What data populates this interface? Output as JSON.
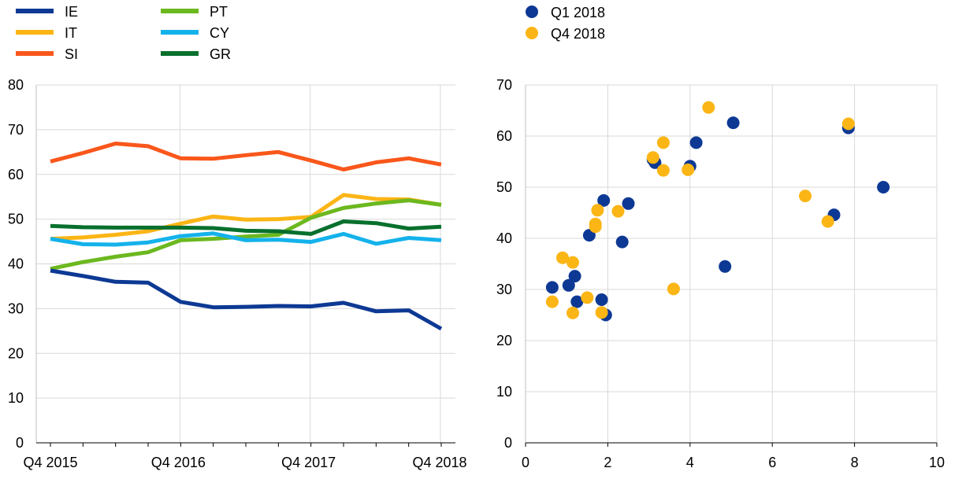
{
  "chart_data": [
    {
      "type": "line",
      "title": "",
      "xlabel": "",
      "ylabel": "",
      "ylim": [
        0,
        80
      ],
      "yticks": [
        "0",
        "10",
        "20",
        "30",
        "40",
        "50",
        "60",
        "70",
        "80"
      ],
      "x_tick_labels": [
        "Q4 2015",
        "Q4 2016",
        "Q4 2017",
        "Q4 2018"
      ],
      "x": [
        "Q4 2015",
        "Q1 2016",
        "Q2 2016",
        "Q3 2016",
        "Q4 2016",
        "Q1 2017",
        "Q2 2017",
        "Q3 2017",
        "Q4 2017",
        "Q1 2018",
        "Q2 2018",
        "Q3 2018",
        "Q4 2018"
      ],
      "grid": true,
      "legend_position": "top-left",
      "series": [
        {
          "name": "IE",
          "color": "#0d3994",
          "values": [
            38.5,
            37.3,
            36.0,
            35.8,
            31.5,
            30.3,
            30.4,
            30.6,
            30.5,
            31.3,
            29.4,
            29.6,
            25.5
          ]
        },
        {
          "name": "IT",
          "color": "#fbb515",
          "values": [
            45.6,
            45.9,
            46.5,
            47.3,
            49.0,
            50.6,
            49.9,
            50.0,
            50.5,
            55.4,
            54.5,
            54.4,
            53.2
          ]
        },
        {
          "name": "SI",
          "color": "#f9571b",
          "values": [
            62.9,
            64.8,
            66.9,
            66.3,
            63.6,
            63.5,
            64.3,
            65.0,
            63.1,
            61.1,
            62.7,
            63.6,
            62.2
          ]
        },
        {
          "name": "PT",
          "color": "#6cb81f",
          "values": [
            38.9,
            40.4,
            41.6,
            42.6,
            45.3,
            45.6,
            46.1,
            46.5,
            50.3,
            52.5,
            53.5,
            54.2,
            53.2
          ]
        },
        {
          "name": "CY",
          "color": "#14b2eb",
          "values": [
            45.6,
            44.4,
            44.3,
            44.8,
            46.2,
            46.8,
            45.3,
            45.4,
            44.9,
            46.7,
            44.5,
            45.8,
            45.3
          ]
        },
        {
          "name": "GR",
          "color": "#08702d",
          "values": [
            48.5,
            48.2,
            48.1,
            48.1,
            48.1,
            48.0,
            47.4,
            47.3,
            46.7,
            49.5,
            49.1,
            47.9,
            48.3
          ]
        }
      ]
    },
    {
      "type": "scatter",
      "title": "",
      "xlabel": "",
      "ylabel": "",
      "xlim": [
        0,
        10
      ],
      "ylim": [
        0,
        70
      ],
      "xticks": [
        "0",
        "2",
        "4",
        "6",
        "8",
        "10"
      ],
      "yticks": [
        "0",
        "10",
        "20",
        "30",
        "40",
        "50",
        "60",
        "70"
      ],
      "grid": true,
      "legend_position": "top-left",
      "series": [
        {
          "name": "Q1 2018",
          "color": "#0d3994",
          "points": [
            [
              0.65,
              30.4
            ],
            [
              1.05,
              30.8
            ],
            [
              1.2,
              32.6
            ],
            [
              1.25,
              27.6
            ],
            [
              1.55,
              40.6
            ],
            [
              1.85,
              28.0
            ],
            [
              1.9,
              47.4
            ],
            [
              1.95,
              25.0
            ],
            [
              2.35,
              39.3
            ],
            [
              2.5,
              46.8
            ],
            [
              3.1,
              55.4
            ],
            [
              3.15,
              54.8
            ],
            [
              4.0,
              54.1
            ],
            [
              4.15,
              58.7
            ],
            [
              4.85,
              34.5
            ],
            [
              5.05,
              62.6
            ],
            [
              7.5,
              44.6
            ],
            [
              7.85,
              61.6
            ],
            [
              8.7,
              50.0
            ]
          ]
        },
        {
          "name": "Q4 2018",
          "color": "#fbb515",
          "points": [
            [
              0.65,
              27.6
            ],
            [
              0.9,
              36.2
            ],
            [
              1.15,
              35.3
            ],
            [
              1.15,
              25.4
            ],
            [
              1.5,
              28.4
            ],
            [
              1.7,
              42.3
            ],
            [
              1.7,
              42.8
            ],
            [
              1.75,
              45.5
            ],
            [
              1.85,
              25.5
            ],
            [
              2.25,
              45.3
            ],
            [
              3.1,
              55.8
            ],
            [
              3.35,
              58.7
            ],
            [
              3.35,
              53.3
            ],
            [
              3.6,
              30.1
            ],
            [
              3.95,
              53.4
            ],
            [
              4.45,
              65.6
            ],
            [
              6.8,
              48.3
            ],
            [
              7.35,
              43.3
            ],
            [
              7.85,
              62.4
            ]
          ]
        }
      ]
    }
  ]
}
